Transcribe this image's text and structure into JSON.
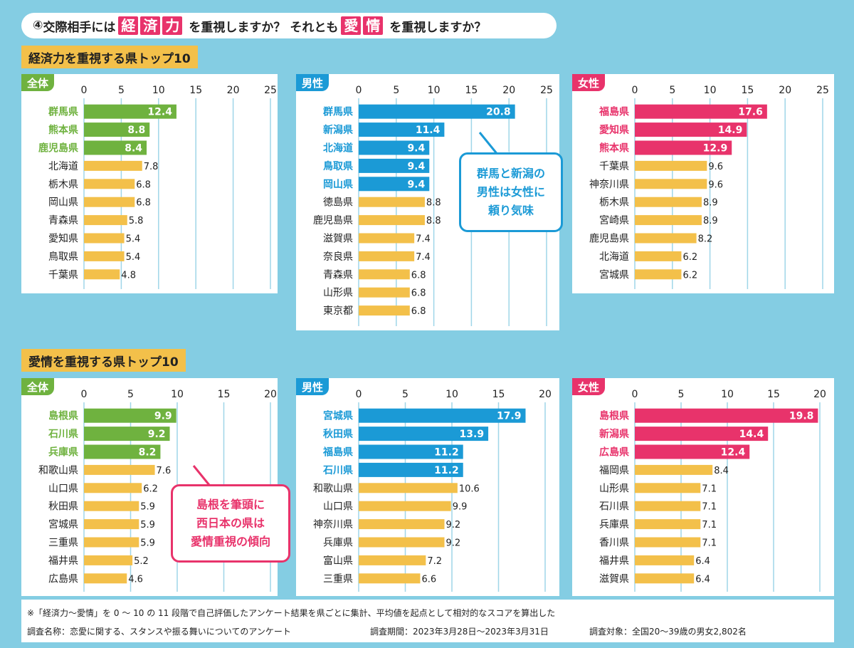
{
  "header": {
    "num": "④",
    "q1": "交際相手には",
    "keyword1": [
      "経",
      "済",
      "力"
    ],
    "q2": "を重視しますか？ それとも",
    "keyword2": [
      "愛",
      "情"
    ],
    "q3": "を重視しますか？"
  },
  "sections": {
    "economy_title": "経済力を重視する県トップ10",
    "love_title": "愛情を重視する県トップ10"
  },
  "colors": {
    "background": "#84cde3",
    "all": "#6fb23f",
    "male": "#1b9ad6",
    "female": "#e8336b",
    "bar_default": "#f3c04a",
    "section_title": "#f3c04a"
  },
  "chart_data": [
    {
      "type": "bar",
      "group": "economy",
      "panel_label": "全体",
      "theme": "all",
      "ylim": [
        0,
        25
      ],
      "ticks": [
        "0",
        "5",
        "10",
        "15",
        "20",
        "25"
      ],
      "categories": [
        "群馬県",
        "熊本県",
        "鹿児島県",
        "北海道",
        "栃木県",
        "岡山県",
        "青森県",
        "愛知県",
        "鳥取県",
        "千葉県"
      ],
      "values": [
        12.4,
        8.8,
        8.4,
        7.8,
        6.8,
        6.8,
        5.8,
        5.4,
        5.4,
        4.8
      ],
      "labels": [
        "12.4",
        "8.8",
        "8.4",
        "7.8",
        "6.8",
        "6.8",
        "5.8",
        "5.4",
        "5.4",
        "4.8"
      ],
      "highlight_count": 3
    },
    {
      "type": "bar",
      "group": "economy",
      "panel_label": "男性",
      "theme": "male",
      "ylim": [
        0,
        25
      ],
      "ticks": [
        "0",
        "5",
        "10",
        "15",
        "20",
        "25"
      ],
      "categories": [
        "群馬県",
        "新潟県",
        "北海道",
        "鳥取県",
        "岡山県",
        "徳島県",
        "鹿児島県",
        "滋賀県",
        "奈良県",
        "青森県",
        "山形県",
        "東京都"
      ],
      "values": [
        20.8,
        11.4,
        9.4,
        9.4,
        9.4,
        8.8,
        8.8,
        7.4,
        7.4,
        6.8,
        6.8,
        6.8
      ],
      "labels": [
        "20.8",
        "11.4",
        "9.4",
        "9.4",
        "9.4",
        "8.8",
        "8.8",
        "7.4",
        "7.4",
        "6.8",
        "6.8",
        "6.8"
      ],
      "highlight_count": 5
    },
    {
      "type": "bar",
      "group": "economy",
      "panel_label": "女性",
      "theme": "female",
      "ylim": [
        0,
        25
      ],
      "ticks": [
        "0",
        "5",
        "10",
        "15",
        "20",
        "25"
      ],
      "categories": [
        "福島県",
        "愛知県",
        "熊本県",
        "千葉県",
        "神奈川県",
        "栃木県",
        "宮崎県",
        "鹿児島県",
        "北海道",
        "宮城県"
      ],
      "values": [
        17.6,
        14.9,
        12.9,
        9.6,
        9.6,
        8.9,
        8.9,
        8.2,
        6.2,
        6.2
      ],
      "labels": [
        "17.6",
        "14.9",
        "12.9",
        "9.6",
        "9.6",
        "8.9",
        "8.9",
        "8.2",
        "6.2",
        "6.2"
      ],
      "highlight_count": 3
    },
    {
      "type": "bar",
      "group": "love",
      "panel_label": "全体",
      "theme": "all",
      "ylim": [
        0,
        20
      ],
      "ticks": [
        "0",
        "5",
        "10",
        "15",
        "20"
      ],
      "categories": [
        "島根県",
        "石川県",
        "兵庫県",
        "和歌山県",
        "山口県",
        "秋田県",
        "宮城県",
        "三重県",
        "福井県",
        "広島県"
      ],
      "values": [
        9.9,
        9.2,
        8.2,
        7.6,
        6.2,
        5.9,
        5.9,
        5.9,
        5.2,
        4.6
      ],
      "labels": [
        "9.9",
        "9.2",
        "8.2",
        "7.6",
        "6.2",
        "5.9",
        "5.9",
        "5.9",
        "5.2",
        "4.6"
      ],
      "highlight_count": 3
    },
    {
      "type": "bar",
      "group": "love",
      "panel_label": "男性",
      "theme": "male",
      "ylim": [
        0,
        20
      ],
      "ticks": [
        "0",
        "5",
        "10",
        "15",
        "20"
      ],
      "categories": [
        "宮城県",
        "秋田県",
        "福島県",
        "石川県",
        "和歌山県",
        "山口県",
        "神奈川県",
        "兵庫県",
        "富山県",
        "三重県"
      ],
      "values": [
        17.9,
        13.9,
        11.2,
        11.2,
        10.6,
        9.9,
        9.2,
        9.2,
        7.2,
        6.6
      ],
      "labels": [
        "17.9",
        "13.9",
        "11.2",
        "11.2",
        "10.6",
        "9.9",
        "9.2",
        "9.2",
        "7.2",
        "6.6"
      ],
      "highlight_count": 4
    },
    {
      "type": "bar",
      "group": "love",
      "panel_label": "女性",
      "theme": "female",
      "ylim": [
        0,
        20
      ],
      "ticks": [
        "0",
        "5",
        "10",
        "15",
        "20"
      ],
      "categories": [
        "島根県",
        "新潟県",
        "広島県",
        "福岡県",
        "山形県",
        "石川県",
        "兵庫県",
        "香川県",
        "福井県",
        "滋賀県"
      ],
      "values": [
        19.8,
        14.4,
        12.4,
        8.4,
        7.1,
        7.1,
        7.1,
        7.1,
        6.4,
        6.4
      ],
      "labels": [
        "19.8",
        "14.4",
        "12.4",
        "8.4",
        "7.1",
        "7.1",
        "7.1",
        "7.1",
        "6.4",
        "6.4"
      ],
      "highlight_count": 3
    }
  ],
  "notes": {
    "male_note": [
      "群馬と新潟の",
      "男性は女性に",
      "頼り気味"
    ],
    "all_note": [
      "島根を筆頭に",
      "西日本の県は",
      "愛情重視の傾向"
    ]
  },
  "footer": {
    "footnote": "※「経済力〜愛情」を 0 〜 10 の 11 段階で自己評価したアンケート結果を県ごとに集計、平均値を起点として相対的なスコアを算出した",
    "survey_name": "調査名称：恋愛に関する、スタンスや振る舞いについてのアンケート",
    "survey_period": "調査期間：2023年3月28日〜2023年3月31日",
    "survey_target": "調査対象：全国20〜39歳の男女2,802名"
  }
}
